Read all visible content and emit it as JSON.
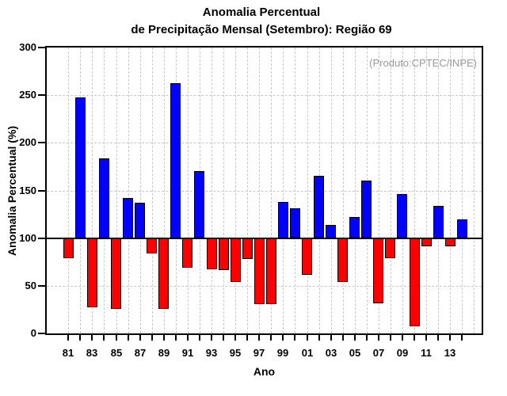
{
  "title": {
    "line1": "Anomalia Percentual",
    "line2": "de Precipitação Mensal (Setembro): Região 69"
  },
  "annotation": "(Produto:CPTEC/INPE)",
  "colors": {
    "positive": "#0000ff",
    "negative": "#ff0000",
    "baseline": "#000000",
    "grid": "#c9c9c9",
    "axis": "#000000",
    "annotation_text": "#999999"
  },
  "chart_data": {
    "type": "bar",
    "title": "Anomalia Percentual de Precipitação Mensal (Setembro): Região 69",
    "xlabel": "Ano",
    "ylabel": "Anomalia Percentual (%)",
    "ylim": [
      0,
      300
    ],
    "yticks": [
      0,
      50,
      100,
      150,
      200,
      250,
      300
    ],
    "ytick_labels": [
      "0",
      "50",
      "100",
      "150",
      "200",
      "250",
      "300"
    ],
    "baseline": 100,
    "grid_hlines": [
      50,
      150,
      200,
      250
    ],
    "grid_end_year": 2015,
    "grid": "dashed light-gray; vertical line every year, horizontal every 50; solid black line at 100",
    "legend_position": "none",
    "color_rule": "value >= 100 -> blue (positive anomaly), value < 100 -> red (negative anomaly)",
    "years": [
      1981,
      1982,
      1983,
      1984,
      1985,
      1986,
      1987,
      1988,
      1989,
      1990,
      1991,
      1992,
      1993,
      1994,
      1995,
      1996,
      1997,
      1998,
      1999,
      2000,
      2001,
      2002,
      2003,
      2004,
      2005,
      2006,
      2007,
      2008,
      2009,
      2010,
      2011,
      2012,
      2013,
      2014
    ],
    "values": [
      79,
      248,
      28,
      184,
      26,
      142,
      137,
      84,
      26,
      263,
      69,
      170,
      68,
      67,
      54,
      78,
      31,
      31,
      138,
      131,
      62,
      165,
      114,
      54,
      122,
      160,
      32,
      79,
      146,
      8,
      92,
      134,
      92,
      120
    ],
    "x_tick_years": [
      1981,
      1983,
      1985,
      1987,
      1989,
      1991,
      1993,
      1995,
      1997,
      1999,
      2001,
      2003,
      2005,
      2007,
      2009,
      2011,
      2013
    ],
    "x_tick_labels": [
      "81",
      "83",
      "85",
      "87",
      "89",
      "91",
      "93",
      "95",
      "97",
      "99",
      "01",
      "03",
      "05",
      "07",
      "09",
      "11",
      "13"
    ]
  }
}
